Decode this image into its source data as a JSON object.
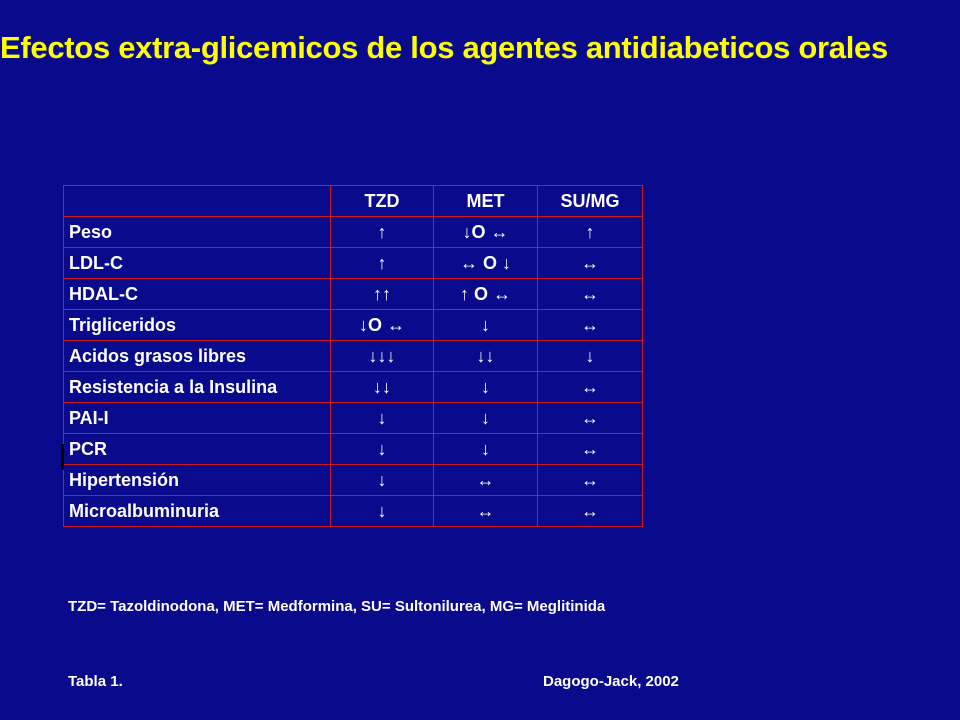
{
  "title": "Efectos extra-glicemicos de los agentes antidiabeticos orales",
  "table": {
    "headers": [
      "",
      "TZD",
      "MET",
      "SU/MG"
    ],
    "rows": [
      {
        "label": "Peso",
        "tzd": "↑",
        "met": "↓O ↔",
        "sumg": "↑"
      },
      {
        "label": "LDL-C",
        "tzd": "↑",
        "met": "↔ O ↓",
        "sumg": "↔"
      },
      {
        "label": "HDAL-C",
        "tzd": "↑↑",
        "met": "↑ O ↔",
        "sumg": "↔"
      },
      {
        "label": "Trigliceridos",
        "tzd": "↓O ↔",
        "met": "↓",
        "sumg": "↔"
      },
      {
        "label": "Acidos grasos libres",
        "tzd": "↓↓↓",
        "met": "↓↓",
        "sumg": "↓"
      },
      {
        "label": "Resistencia a la Insulina",
        "tzd": "↓↓",
        "met": "↓",
        "sumg": "↔"
      },
      {
        "label": "PAI-I",
        "tzd": "↓",
        "met": "↓",
        "sumg": "↔"
      },
      {
        "label": "PCR",
        "tzd": "↓",
        "met": "↓",
        "sumg": "↔"
      },
      {
        "label": "Hipertensión",
        "tzd": "↓",
        "met": "↔",
        "sumg": "↔"
      },
      {
        "label": "Microalbuminuria",
        "tzd": "↓",
        "met": "↔",
        "sumg": "↔"
      }
    ]
  },
  "footnote": "TZD= Tazoldinodona, MET= Medformina, SU= Sultonilurea, MG= Meglitinida",
  "caption": "Tabla 1.",
  "source": "Dagogo-Jack, 2002",
  "colors": {
    "background": "#0A0A8C",
    "title": "#FFFF00",
    "text": "#FFFFFF",
    "table_border": "#D0141E"
  }
}
